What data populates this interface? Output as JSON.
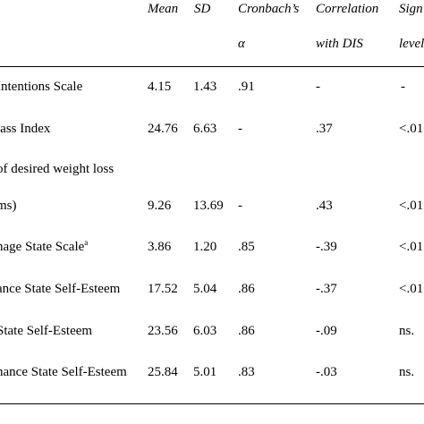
{
  "table": {
    "header": {
      "mean": "Mean",
      "sd": "SD",
      "alpha_line1": "Cronbach’s",
      "alpha_line2": "α",
      "corr_line1": "Correlation",
      "corr_line2": "with DIS",
      "sig_line1": "Sign",
      "sig_line2": "level"
    },
    "rows": [
      {
        "label": "Intentions Scale",
        "mean": "4.15",
        "sd": "1.43",
        "alpha": ".91",
        "corr": "-",
        "sig": "-"
      },
      {
        "label": "lass Index",
        "mean": "24.76",
        "sd": "6.63",
        "alpha": "-",
        "corr": ".37",
        "sig": "<.01"
      },
      {
        "label_line1": "of desired weight loss",
        "label": "ms)",
        "mean": "9.26",
        "sd": "13.69",
        "alpha": "-",
        "corr": ".43",
        "sig": "<.01"
      },
      {
        "label": "nage State Scale",
        "label_sup": "a",
        "mean": "3.86",
        "sd": "1.20",
        "alpha": ".85",
        "corr": "-.39",
        "sig": "<.01"
      },
      {
        "label": "ance State Self-Esteem",
        "mean": "17.52",
        "sd": "5.04",
        "alpha": ".86",
        "corr": "-.37",
        "sig": "<.01"
      },
      {
        "label": "State Self-Esteem",
        "mean": "23.56",
        "sd": "6.03",
        "alpha": ".86",
        "corr": "-.09",
        "sig": "ns."
      },
      {
        "label": "nance State Self-Esteem",
        "mean": "25.84",
        "sd": "5.01",
        "alpha": ".83",
        "corr": "-.03",
        "sig": "ns."
      }
    ]
  }
}
